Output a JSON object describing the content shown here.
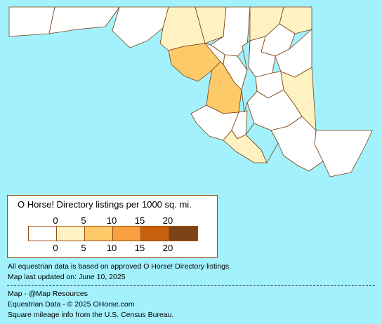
{
  "legend": {
    "title": "O Horse! Directory listings per 1000 sq. mi.",
    "top_ticks": [
      "0",
      "5",
      "10",
      "15",
      "20"
    ],
    "bottom_ticks": [
      "0",
      "5",
      "10",
      "15",
      "20"
    ],
    "colors": [
      "#ffffff",
      "#fff2c2",
      "#fdca6a",
      "#f89f3e",
      "#c9600d",
      "#7b4316"
    ]
  },
  "map": {
    "ocean_color": "#a3f1fd",
    "border_color": "#7a3c0c"
  },
  "notes": {
    "data_source": "All equestrian data is based on approved O Horse! Directory listings.",
    "last_updated": "Map last updated on: June 10, 2025"
  },
  "credits": {
    "map": "Map - @Map Resources",
    "equestrian": "Equestrian Data - © 2025 OHorse.com",
    "mileage": "Square mileage info from the U.S. Census Bureau."
  }
}
